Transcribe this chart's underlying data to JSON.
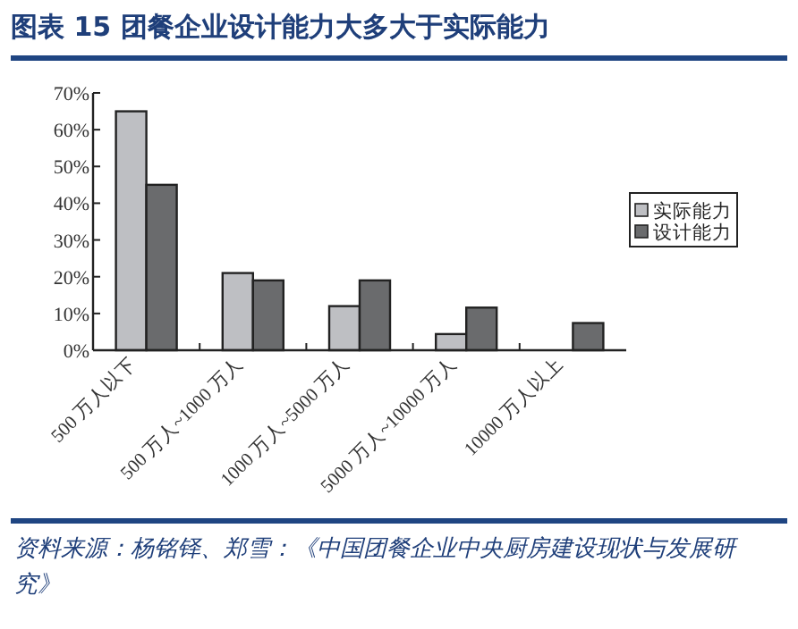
{
  "chart_data": {
    "type": "bar",
    "title": "图表 15 团餐企业设计能力大多大于实际能力",
    "categories": [
      "500 万人以下",
      "500 万人~1000 万人",
      "1000 万人~5000 万人",
      "5000 万人~10000 万人",
      "10000 万人以上"
    ],
    "series": [
      {
        "name": "实际能力",
        "color": "#bebfc3",
        "values": [
          65,
          21,
          12,
          4.4,
          0
        ]
      },
      {
        "name": "设计能力",
        "color": "#6a6b6d",
        "values": [
          45,
          19,
          19,
          11.6,
          7.4
        ]
      }
    ],
    "ylim": [
      0,
      70
    ],
    "yticks": [
      {
        "value": 0,
        "label": "0%"
      },
      {
        "value": 10,
        "label": "10%"
      },
      {
        "value": 20,
        "label": "20%"
      },
      {
        "value": 30,
        "label": "30%"
      },
      {
        "value": 40,
        "label": "40%"
      },
      {
        "value": 50,
        "label": "50%"
      },
      {
        "value": 60,
        "label": "60%"
      },
      {
        "value": 70,
        "label": "70%"
      }
    ],
    "legend": "right",
    "grid": false,
    "annotations": [
      "资料来源：杨铭铎、郑雪：《中国团餐企业中央厨房建设现状与发展研究》"
    ]
  }
}
